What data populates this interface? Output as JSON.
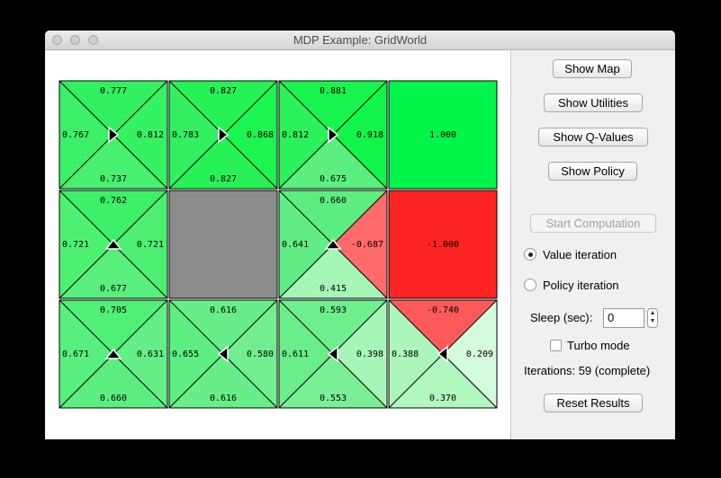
{
  "window": {
    "title": "MDP Example: GridWorld"
  },
  "grid": {
    "rows": [
      [
        {
          "type": "q",
          "n": "0.777",
          "e": "0.812",
          "s": "0.737",
          "w": "0.767",
          "arrow": "right",
          "colors": {
            "n": "#33f060",
            "e": "#36f263",
            "s": "#48f070",
            "w": "#3cef68"
          }
        },
        {
          "type": "q",
          "n": "0.827",
          "e": "0.868",
          "s": "0.827",
          "w": "0.783",
          "arrow": "right",
          "colors": {
            "n": "#26f256",
            "e": "#1cf44f",
            "s": "#26f256",
            "w": "#33f060"
          }
        },
        {
          "type": "q",
          "n": "0.881",
          "e": "0.918",
          "s": "0.675",
          "w": "0.812",
          "arrow": "right",
          "colors": {
            "n": "#18f44d",
            "e": "#10f548",
            "s": "#5aef7e",
            "w": "#2bf25a"
          }
        },
        {
          "type": "terminal",
          "value": "1.000",
          "color": "#00f54a"
        }
      ],
      [
        {
          "type": "q",
          "n": "0.762",
          "e": "0.721",
          "s": "0.677",
          "w": "0.721",
          "arrow": "up",
          "colors": {
            "n": "#3cf068",
            "e": "#4ef073",
            "s": "#58ef7c",
            "w": "#4ef073"
          }
        },
        {
          "type": "wall",
          "color": "#8c8c8c"
        },
        {
          "type": "q",
          "n": "0.660",
          "e": "-0.687",
          "s": "0.415",
          "w": "0.641",
          "arrow": "up",
          "colors": {
            "n": "#5cef80",
            "e": "#ff6b6b",
            "s": "#a4f7b6",
            "w": "#62ee85"
          }
        },
        {
          "type": "terminal",
          "value": "-1.000",
          "color": "#ff2424"
        }
      ],
      [
        {
          "type": "q",
          "n": "0.705",
          "e": "0.631",
          "s": "0.660",
          "w": "0.671",
          "arrow": "up",
          "colors": {
            "n": "#50ef76",
            "e": "#64ee86",
            "s": "#5cef80",
            "w": "#59ef7e"
          }
        },
        {
          "type": "q",
          "n": "0.616",
          "e": "0.580",
          "s": "0.616",
          "w": "0.655",
          "arrow": "left",
          "colors": {
            "n": "#68ee89",
            "e": "#72ee90",
            "s": "#68ee89",
            "w": "#5def81"
          }
        },
        {
          "type": "q",
          "n": "0.593",
          "e": "0.398",
          "s": "0.553",
          "w": "0.611",
          "arrow": "left",
          "colors": {
            "n": "#6eee8d",
            "e": "#a8f6b9",
            "s": "#7aef96",
            "w": "#69ee89"
          }
        },
        {
          "type": "q",
          "n": "-0.740",
          "e": "0.209",
          "s": "0.370",
          "w": "0.388",
          "arrow": "left",
          "colors": {
            "n": "#ff5a5a",
            "e": "#d4fbdc",
            "s": "#b0f7c0",
            "w": "#abf6bc"
          }
        }
      ]
    ]
  },
  "panel": {
    "show_map": "Show Map",
    "show_utilities": "Show Utilities",
    "show_qvalues": "Show Q-Values",
    "show_policy": "Show Policy",
    "start_computation": "Start Computation",
    "value_iteration": "Value iteration",
    "policy_iteration": "Policy iteration",
    "sleep_label": "Sleep (sec):",
    "sleep_value": "0",
    "turbo_mode": "Turbo mode",
    "iterations": "Iterations: 59 (complete)",
    "reset_results": "Reset Results",
    "selected_algorithm": "Value iteration",
    "turbo_checked": false
  }
}
